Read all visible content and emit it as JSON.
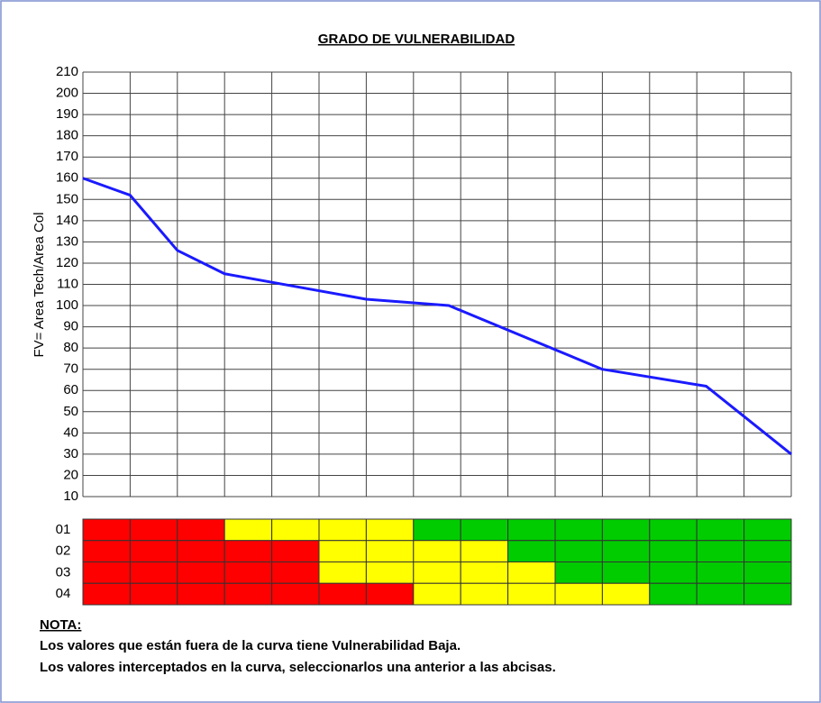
{
  "chart_data": {
    "type": "line",
    "title": "GRADO DE VULNERABILIDAD",
    "y_label": "FV= Area Tech/Area Col",
    "xlim": [
      0,
      15
    ],
    "ylim": [
      10,
      210
    ],
    "yticks": [
      10,
      20,
      30,
      40,
      50,
      60,
      70,
      80,
      90,
      100,
      110,
      120,
      130,
      140,
      150,
      160,
      170,
      180,
      190,
      200,
      210
    ],
    "grid": true,
    "series": [
      {
        "color": "#1a1aff",
        "x": [
          0,
          1,
          2,
          3,
          6,
          7.75,
          11,
          13.2,
          15
        ],
        "values": [
          160,
          152,
          126,
          115,
          103,
          100,
          70,
          62,
          30
        ]
      }
    ],
    "color_rows": [
      {
        "label": "01",
        "colors": [
          "#ff0000",
          "#ff0000",
          "#ff0000",
          "#ffff00",
          "#ffff00",
          "#ffff00",
          "#ffff00",
          "#00cc00",
          "#00cc00",
          "#00cc00",
          "#00cc00",
          "#00cc00",
          "#00cc00",
          "#00cc00",
          "#00cc00"
        ]
      },
      {
        "label": "02",
        "colors": [
          "#ff0000",
          "#ff0000",
          "#ff0000",
          "#ff0000",
          "#ff0000",
          "#ffff00",
          "#ffff00",
          "#ffff00",
          "#ffff00",
          "#00cc00",
          "#00cc00",
          "#00cc00",
          "#00cc00",
          "#00cc00",
          "#00cc00"
        ]
      },
      {
        "label": "03",
        "colors": [
          "#ff0000",
          "#ff0000",
          "#ff0000",
          "#ff0000",
          "#ff0000",
          "#ffff00",
          "#ffff00",
          "#ffff00",
          "#ffff00",
          "#ffff00",
          "#00cc00",
          "#00cc00",
          "#00cc00",
          "#00cc00",
          "#00cc00"
        ]
      },
      {
        "label": "04",
        "colors": [
          "#ff0000",
          "#ff0000",
          "#ff0000",
          "#ff0000",
          "#ff0000",
          "#ff0000",
          "#ff0000",
          "#ffff00",
          "#ffff00",
          "#ffff00",
          "#ffff00",
          "#ffff00",
          "#00cc00",
          "#00cc00",
          "#00cc00"
        ]
      }
    ]
  },
  "note": {
    "heading": "NOTA:",
    "lines": [
      "Los valores que están fuera de la curva tiene Vulnerabilidad Baja.",
      "Los valores interceptados en la curva, seleccionarlos una anterior a las abcisas."
    ]
  }
}
